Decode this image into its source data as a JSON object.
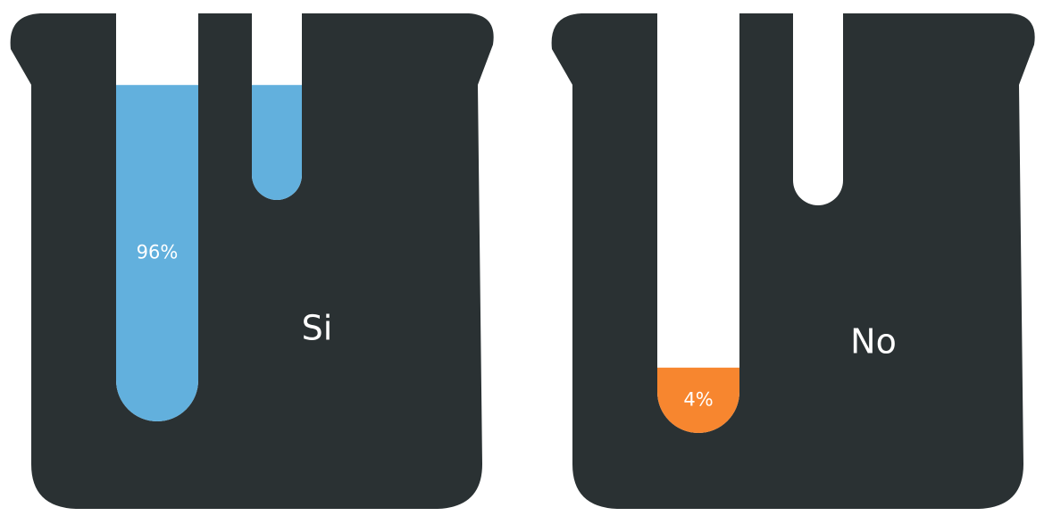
{
  "chart_data": {
    "type": "pictorial-fill",
    "categories": [
      "Si",
      "No"
    ],
    "values": [
      96,
      4
    ],
    "value_labels": [
      "96%",
      "4%"
    ],
    "colors": [
      "#62b0dd",
      "#f7862f"
    ]
  }
}
